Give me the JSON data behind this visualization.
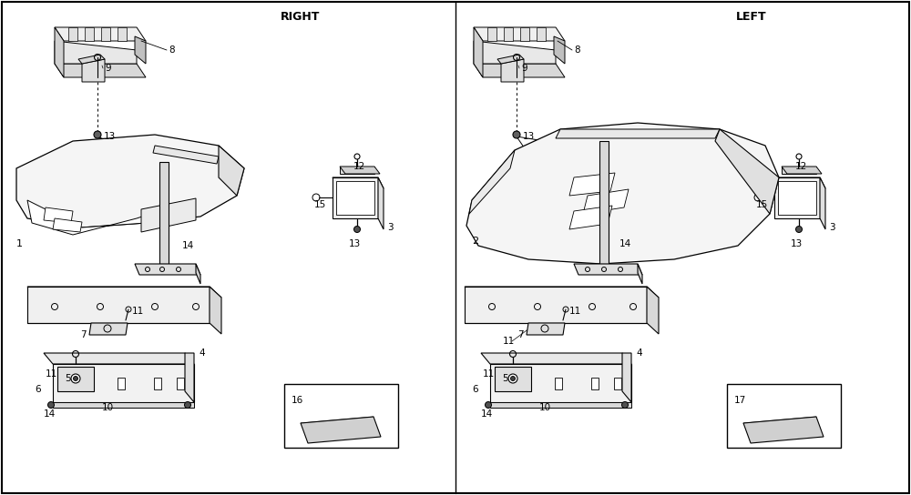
{
  "bg": "#ffffff",
  "border": "#000000",
  "lc": "#000000",
  "gray1": "#f2f2f2",
  "gray2": "#e0e0e0",
  "gray3": "#c8c8c8",
  "gray4": "#b0b0b0",
  "right_label": "RIGHT",
  "left_label": "LEFT",
  "fig_w": 10.0,
  "fig_h": 5.44,
  "dpi": 100
}
